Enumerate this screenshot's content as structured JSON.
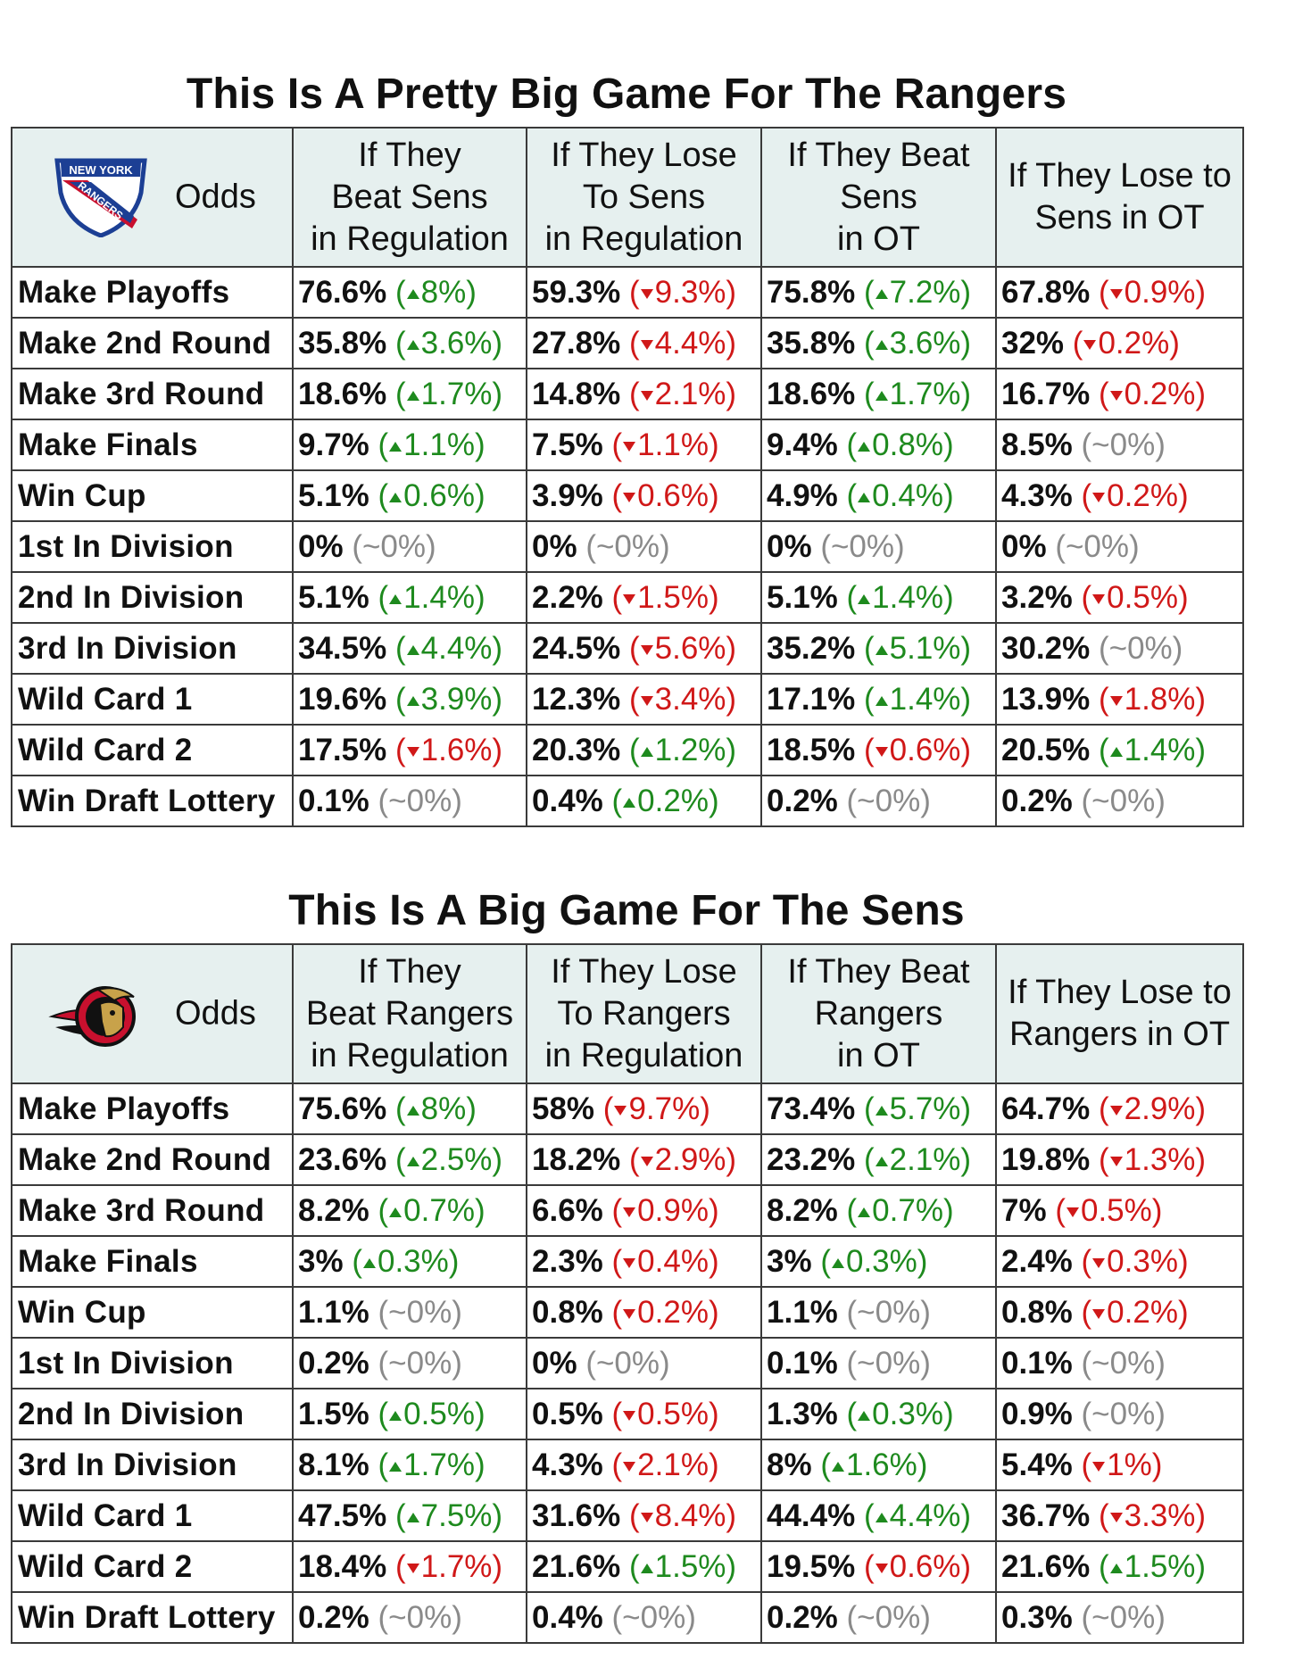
{
  "colors": {
    "up": "#1e8a1e",
    "down": "#d01818",
    "flat": "#8a8a8a",
    "header_bg": "#e6f0ef"
  },
  "tables": [
    {
      "title": "This Is A Pretty Big Game For The Rangers",
      "logo_icon": "new-york-rangers-logo",
      "logo_text": [
        "NEW YORK",
        "RANGERS"
      ],
      "corner_label": "Odds",
      "headers": [
        [
          "If They",
          "Beat Sens",
          "in Regulation"
        ],
        [
          "If They Lose",
          "To Sens",
          "in Regulation"
        ],
        [
          "If They Beat",
          "Sens",
          "in OT"
        ],
        [
          "If They Lose to",
          "Sens in OT"
        ]
      ],
      "rows": [
        {
          "label": "Make Playoffs",
          "cells": [
            {
              "v": "76.6%",
              "c": "8%",
              "d": "up"
            },
            {
              "v": "59.3%",
              "c": "9.3%",
              "d": "down"
            },
            {
              "v": "75.8%",
              "c": "7.2%",
              "d": "up"
            },
            {
              "v": "67.8%",
              "c": "0.9%",
              "d": "down"
            }
          ]
        },
        {
          "label": "Make 2nd Round",
          "cells": [
            {
              "v": "35.8%",
              "c": "3.6%",
              "d": "up"
            },
            {
              "v": "27.8%",
              "c": "4.4%",
              "d": "down"
            },
            {
              "v": "35.8%",
              "c": "3.6%",
              "d": "up"
            },
            {
              "v": "32%",
              "c": "0.2%",
              "d": "down"
            }
          ]
        },
        {
          "label": "Make 3rd Round",
          "cells": [
            {
              "v": "18.6%",
              "c": "1.7%",
              "d": "up"
            },
            {
              "v": "14.8%",
              "c": "2.1%",
              "d": "down"
            },
            {
              "v": "18.6%",
              "c": "1.7%",
              "d": "up"
            },
            {
              "v": "16.7%",
              "c": "0.2%",
              "d": "down"
            }
          ]
        },
        {
          "label": "Make Finals",
          "cells": [
            {
              "v": "9.7%",
              "c": "1.1%",
              "d": "up"
            },
            {
              "v": "7.5%",
              "c": "1.1%",
              "d": "down"
            },
            {
              "v": "9.4%",
              "c": "0.8%",
              "d": "up"
            },
            {
              "v": "8.5%",
              "c": "~0%",
              "d": "flat"
            }
          ]
        },
        {
          "label": "Win Cup",
          "cells": [
            {
              "v": "5.1%",
              "c": "0.6%",
              "d": "up"
            },
            {
              "v": "3.9%",
              "c": "0.6%",
              "d": "down"
            },
            {
              "v": "4.9%",
              "c": "0.4%",
              "d": "up"
            },
            {
              "v": "4.3%",
              "c": "0.2%",
              "d": "down"
            }
          ]
        },
        {
          "label": "1st In Division",
          "cells": [
            {
              "v": "0%",
              "c": "~0%",
              "d": "flat"
            },
            {
              "v": "0%",
              "c": "~0%",
              "d": "flat"
            },
            {
              "v": "0%",
              "c": "~0%",
              "d": "flat"
            },
            {
              "v": "0%",
              "c": "~0%",
              "d": "flat"
            }
          ]
        },
        {
          "label": "2nd In Division",
          "cells": [
            {
              "v": "5.1%",
              "c": "1.4%",
              "d": "up"
            },
            {
              "v": "2.2%",
              "c": "1.5%",
              "d": "down"
            },
            {
              "v": "5.1%",
              "c": "1.4%",
              "d": "up"
            },
            {
              "v": "3.2%",
              "c": "0.5%",
              "d": "down"
            }
          ]
        },
        {
          "label": "3rd In Division",
          "cells": [
            {
              "v": "34.5%",
              "c": "4.4%",
              "d": "up"
            },
            {
              "v": "24.5%",
              "c": "5.6%",
              "d": "down"
            },
            {
              "v": "35.2%",
              "c": "5.1%",
              "d": "up"
            },
            {
              "v": "30.2%",
              "c": "~0%",
              "d": "flat"
            }
          ]
        },
        {
          "label": "Wild Card 1",
          "cells": [
            {
              "v": "19.6%",
              "c": "3.9%",
              "d": "up"
            },
            {
              "v": "12.3%",
              "c": "3.4%",
              "d": "down"
            },
            {
              "v": "17.1%",
              "c": "1.4%",
              "d": "up"
            },
            {
              "v": "13.9%",
              "c": "1.8%",
              "d": "down"
            }
          ]
        },
        {
          "label": "Wild Card 2",
          "cells": [
            {
              "v": "17.5%",
              "c": "1.6%",
              "d": "down"
            },
            {
              "v": "20.3%",
              "c": "1.2%",
              "d": "up"
            },
            {
              "v": "18.5%",
              "c": "0.6%",
              "d": "down"
            },
            {
              "v": "20.5%",
              "c": "1.4%",
              "d": "up"
            }
          ]
        },
        {
          "label": "Win Draft Lottery",
          "cells": [
            {
              "v": "0.1%",
              "c": "~0%",
              "d": "flat"
            },
            {
              "v": "0.4%",
              "c": "0.2%",
              "d": "up"
            },
            {
              "v": "0.2%",
              "c": "~0%",
              "d": "flat"
            },
            {
              "v": "0.2%",
              "c": "~0%",
              "d": "flat"
            }
          ]
        }
      ]
    },
    {
      "title": "This Is A Big Game For The Sens",
      "logo_icon": "ottawa-senators-logo",
      "logo_text": [],
      "corner_label": "Odds",
      "headers": [
        [
          "If They",
          "Beat Rangers",
          "in Regulation"
        ],
        [
          "If They Lose",
          "To Rangers",
          "in Regulation"
        ],
        [
          "If They Beat",
          "Rangers",
          "in OT"
        ],
        [
          "If They Lose to",
          "Rangers in OT"
        ]
      ],
      "rows": [
        {
          "label": "Make Playoffs",
          "cells": [
            {
              "v": "75.6%",
              "c": "8%",
              "d": "up"
            },
            {
              "v": "58%",
              "c": "9.7%",
              "d": "down"
            },
            {
              "v": "73.4%",
              "c": "5.7%",
              "d": "up"
            },
            {
              "v": "64.7%",
              "c": "2.9%",
              "d": "down"
            }
          ]
        },
        {
          "label": "Make 2nd Round",
          "cells": [
            {
              "v": "23.6%",
              "c": "2.5%",
              "d": "up"
            },
            {
              "v": "18.2%",
              "c": "2.9%",
              "d": "down"
            },
            {
              "v": "23.2%",
              "c": "2.1%",
              "d": "up"
            },
            {
              "v": "19.8%",
              "c": "1.3%",
              "d": "down"
            }
          ]
        },
        {
          "label": "Make 3rd Round",
          "cells": [
            {
              "v": "8.2%",
              "c": "0.7%",
              "d": "up"
            },
            {
              "v": "6.6%",
              "c": "0.9%",
              "d": "down"
            },
            {
              "v": "8.2%",
              "c": "0.7%",
              "d": "up"
            },
            {
              "v": "7%",
              "c": "0.5%",
              "d": "down"
            }
          ]
        },
        {
          "label": "Make Finals",
          "cells": [
            {
              "v": "3%",
              "c": "0.3%",
              "d": "up"
            },
            {
              "v": "2.3%",
              "c": "0.4%",
              "d": "down"
            },
            {
              "v": "3%",
              "c": "0.3%",
              "d": "up"
            },
            {
              "v": "2.4%",
              "c": "0.3%",
              "d": "down"
            }
          ]
        },
        {
          "label": "Win Cup",
          "cells": [
            {
              "v": "1.1%",
              "c": "~0%",
              "d": "flat"
            },
            {
              "v": "0.8%",
              "c": "0.2%",
              "d": "down"
            },
            {
              "v": "1.1%",
              "c": "~0%",
              "d": "flat"
            },
            {
              "v": "0.8%",
              "c": "0.2%",
              "d": "down"
            }
          ]
        },
        {
          "label": "1st In Division",
          "cells": [
            {
              "v": "0.2%",
              "c": "~0%",
              "d": "flat"
            },
            {
              "v": "0%",
              "c": "~0%",
              "d": "flat"
            },
            {
              "v": "0.1%",
              "c": "~0%",
              "d": "flat"
            },
            {
              "v": "0.1%",
              "c": "~0%",
              "d": "flat"
            }
          ]
        },
        {
          "label": "2nd In Division",
          "cells": [
            {
              "v": "1.5%",
              "c": "0.5%",
              "d": "up"
            },
            {
              "v": "0.5%",
              "c": "0.5%",
              "d": "down"
            },
            {
              "v": "1.3%",
              "c": "0.3%",
              "d": "up"
            },
            {
              "v": "0.9%",
              "c": "~0%",
              "d": "flat"
            }
          ]
        },
        {
          "label": "3rd In Division",
          "cells": [
            {
              "v": "8.1%",
              "c": "1.7%",
              "d": "up"
            },
            {
              "v": "4.3%",
              "c": "2.1%",
              "d": "down"
            },
            {
              "v": "8%",
              "c": "1.6%",
              "d": "up"
            },
            {
              "v": "5.4%",
              "c": "1%",
              "d": "down"
            }
          ]
        },
        {
          "label": "Wild Card 1",
          "cells": [
            {
              "v": "47.5%",
              "c": "7.5%",
              "d": "up"
            },
            {
              "v": "31.6%",
              "c": "8.4%",
              "d": "down"
            },
            {
              "v": "44.4%",
              "c": "4.4%",
              "d": "up"
            },
            {
              "v": "36.7%",
              "c": "3.3%",
              "d": "down"
            }
          ]
        },
        {
          "label": "Wild Card 2",
          "cells": [
            {
              "v": "18.4%",
              "c": "1.7%",
              "d": "down"
            },
            {
              "v": "21.6%",
              "c": "1.5%",
              "d": "up"
            },
            {
              "v": "19.5%",
              "c": "0.6%",
              "d": "down"
            },
            {
              "v": "21.6%",
              "c": "1.5%",
              "d": "up"
            }
          ]
        },
        {
          "label": "Win Draft Lottery",
          "cells": [
            {
              "v": "0.2%",
              "c": "~0%",
              "d": "flat"
            },
            {
              "v": "0.4%",
              "c": "~0%",
              "d": "flat"
            },
            {
              "v": "0.2%",
              "c": "~0%",
              "d": "flat"
            },
            {
              "v": "0.3%",
              "c": "~0%",
              "d": "flat"
            }
          ]
        }
      ]
    }
  ]
}
